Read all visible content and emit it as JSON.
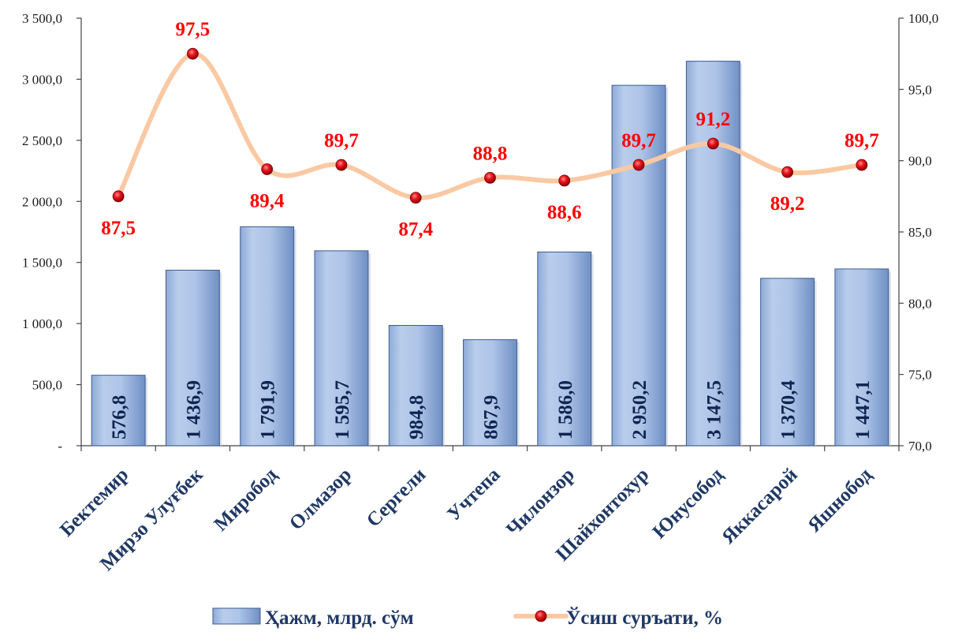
{
  "chart_data": {
    "type": "bar",
    "categories": [
      "Бектемир",
      "Мирзо Улуғбек",
      "Миробод",
      "Олмазор",
      "Сергели",
      "Учтепа",
      "Чилонзор",
      "Шайхонтохур",
      "Юнусобод",
      "Яккасарой",
      "Яшнобод"
    ],
    "series": [
      {
        "name": "Ҳажм, млрд. сўм",
        "type": "bar",
        "axis": "left",
        "values": [
          576.8,
          1436.9,
          1791.9,
          1595.7,
          984.8,
          867.9,
          1586.0,
          2950.2,
          3147.5,
          1370.4,
          1447.1
        ],
        "labels": [
          "576,8",
          "1 436,9",
          "1 791,9",
          "1 595,7",
          "984,8",
          "867,9",
          "1 586,0",
          "2 950,2",
          "3 147,5",
          "1 370,4",
          "1 447,1"
        ],
        "color": "#a9c2e6"
      },
      {
        "name": "Ўсиш суръати, %",
        "type": "line",
        "axis": "right",
        "values": [
          87.5,
          97.5,
          89.4,
          89.7,
          87.4,
          88.8,
          88.6,
          89.7,
          91.2,
          89.2,
          89.7
        ],
        "labels": [
          "87,5",
          "97,5",
          "89,4",
          "89,7",
          "87,4",
          "88,8",
          "88,6",
          "89,7",
          "91,2",
          "89,2",
          "89,7"
        ],
        "label_positions": [
          "below",
          "above",
          "below",
          "above",
          "below",
          "above",
          "below",
          "above",
          "above",
          "below",
          "above"
        ],
        "color": "#fac9a3",
        "marker_color": "#e0141c",
        "label_color": "#ff0000"
      }
    ],
    "y_left": {
      "lim": [
        0,
        3500
      ],
      "ticks": [
        0,
        500,
        1000,
        1500,
        2000,
        2500,
        3000,
        3500
      ],
      "tick_labels": [
        "-",
        "500,0",
        "1 000,0",
        "1 500,0",
        "2 000,0",
        "2 500,0",
        "3 000,0",
        "3 500,0"
      ]
    },
    "y_right": {
      "lim": [
        70,
        100
      ],
      "ticks": [
        70,
        75,
        80,
        85,
        90,
        95,
        100
      ],
      "tick_labels": [
        "70,0",
        "75,0",
        "80,0",
        "85,0",
        "90,0",
        "95,0",
        "100,0"
      ]
    },
    "title": "",
    "xlabel": "",
    "grid": false,
    "legend_position": "bottom"
  }
}
